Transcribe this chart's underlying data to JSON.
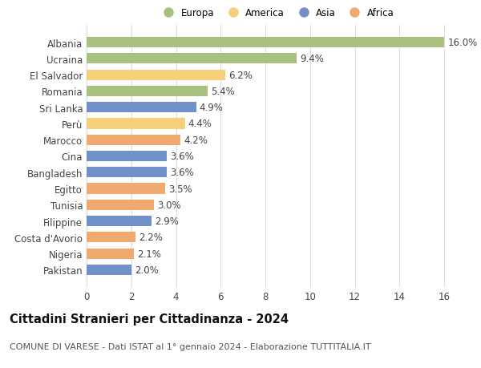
{
  "countries": [
    "Albania",
    "Ucraina",
    "El Salvador",
    "Romania",
    "Sri Lanka",
    "Perù",
    "Marocco",
    "Cina",
    "Bangladesh",
    "Egitto",
    "Tunisia",
    "Filippine",
    "Costa d'Avorio",
    "Nigeria",
    "Pakistan"
  ],
  "values": [
    16.0,
    9.4,
    6.2,
    5.4,
    4.9,
    4.4,
    4.2,
    3.6,
    3.6,
    3.5,
    3.0,
    2.9,
    2.2,
    2.1,
    2.0
  ],
  "continents": [
    "Europa",
    "Europa",
    "America",
    "Europa",
    "Asia",
    "America",
    "Africa",
    "Asia",
    "Asia",
    "Africa",
    "Africa",
    "Asia",
    "Africa",
    "Africa",
    "Asia"
  ],
  "colors": {
    "Europa": "#a8c080",
    "America": "#f5d07a",
    "Asia": "#7090c8",
    "Africa": "#f0aa70"
  },
  "legend_order": [
    "Europa",
    "America",
    "Asia",
    "Africa"
  ],
  "title": "Cittadini Stranieri per Cittadinanza - 2024",
  "subtitle": "COMUNE DI VARESE - Dati ISTAT al 1° gennaio 2024 - Elaborazione TUTTITALIA.IT",
  "xlim": [
    0,
    17
  ],
  "xticks": [
    0,
    2,
    4,
    6,
    8,
    10,
    12,
    14,
    16
  ],
  "grid_color": "#dddddd",
  "bg_color": "#ffffff",
  "bar_height": 0.65,
  "label_fontsize": 8.5,
  "tick_fontsize": 8.5,
  "title_fontsize": 10.5,
  "subtitle_fontsize": 8.0
}
